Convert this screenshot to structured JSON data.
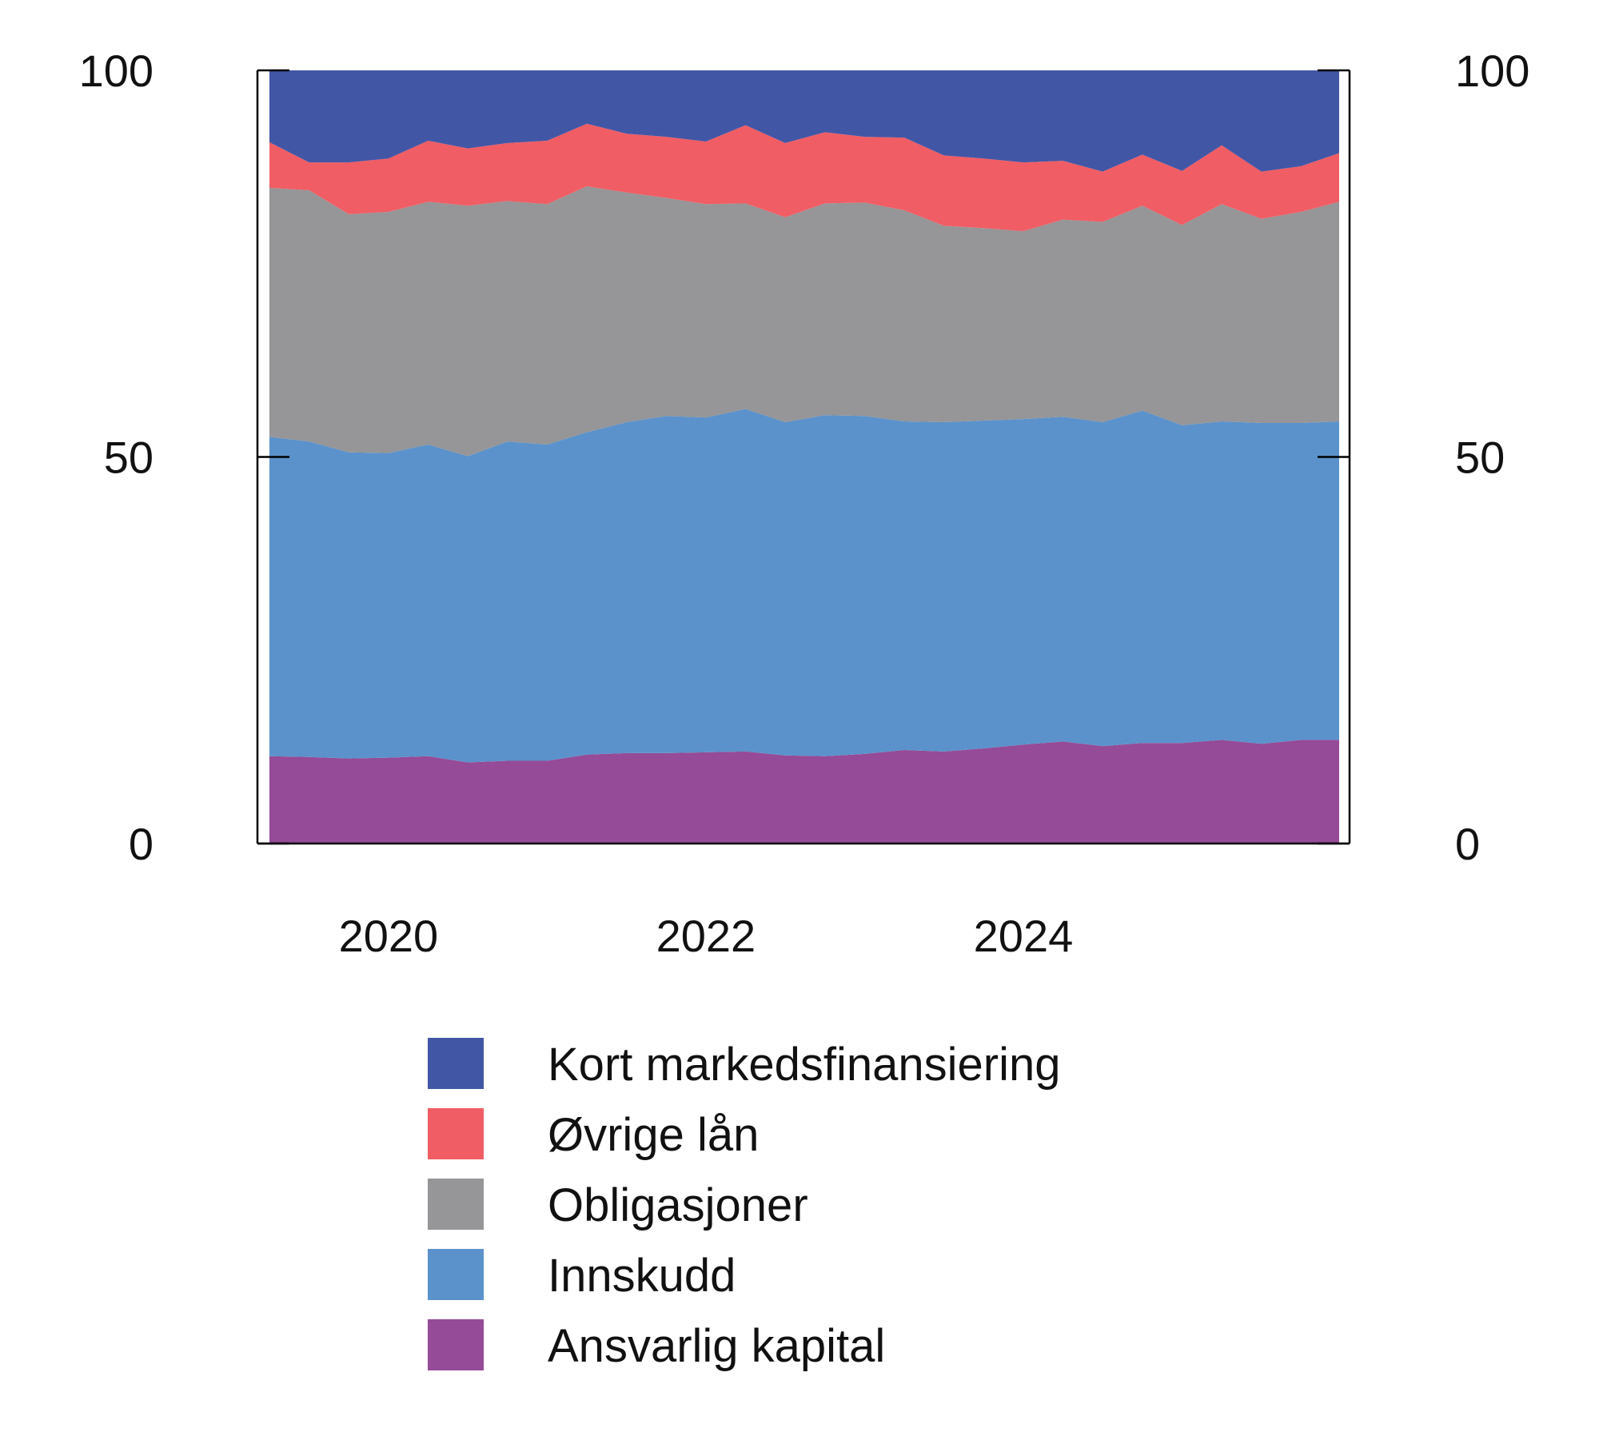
{
  "chart_data": {
    "type": "area",
    "stacked": true,
    "title": "",
    "xlabel": "",
    "ylabel": "",
    "ylim": [
      0,
      100
    ],
    "xlim": [
      2019.25,
      2025.99
    ],
    "y_ticks": [
      0,
      50,
      100
    ],
    "y_tick_labels": [
      "0",
      "50",
      "100"
    ],
    "y_tick_labels_right": [
      "0",
      "50",
      "100"
    ],
    "x_ticks": [
      2020,
      2022,
      2024
    ],
    "x_tick_labels": [
      "2020",
      "2022",
      "2024"
    ],
    "grid": false,
    "legend_position": "bottom",
    "x": [
      2019.25,
      2019.5,
      2019.75,
      2020.0,
      2020.25,
      2020.5,
      2020.75,
      2021.0,
      2021.25,
      2021.5,
      2021.75,
      2022.0,
      2022.25,
      2022.5,
      2022.75,
      2023.0,
      2023.25,
      2023.5,
      2023.75,
      2024.0,
      2024.25,
      2024.5,
      2024.75,
      2025.0,
      2025.25,
      2025.5,
      2025.75,
      2025.99
    ],
    "series": [
      {
        "name": "Ansvarlig kapital",
        "color": "#954B97",
        "values": [
          11.3,
          11.2,
          11.0,
          11.1,
          11.3,
          10.5,
          10.7,
          10.7,
          11.5,
          11.7,
          11.7,
          11.8,
          11.9,
          11.4,
          11.3,
          11.6,
          12.1,
          11.9,
          12.3,
          12.8,
          13.2,
          12.6,
          13.0,
          13.0,
          13.4,
          12.9,
          13.4,
          13.4
        ]
      },
      {
        "name": "Innskudd",
        "color": "#5B92CB",
        "values": [
          41.3,
          40.8,
          39.6,
          39.4,
          40.3,
          39.6,
          41.3,
          40.9,
          41.7,
          42.8,
          43.6,
          43.3,
          44.3,
          43.1,
          44.1,
          43.7,
          42.5,
          42.6,
          42.4,
          42.1,
          42.0,
          41.9,
          43.0,
          41.1,
          41.2,
          41.5,
          41.0,
          41.2
        ]
      },
      {
        "name": "Obligasjoner",
        "color": "#969597",
        "values": [
          32.2,
          32.5,
          30.8,
          31.2,
          31.4,
          32.4,
          31.1,
          31.1,
          31.8,
          29.7,
          28.2,
          27.6,
          26.6,
          26.5,
          27.4,
          27.6,
          27.3,
          25.4,
          24.9,
          24.3,
          25.5,
          25.9,
          26.5,
          25.9,
          28.1,
          26.4,
          27.3,
          28.4
        ]
      },
      {
        "name": "Øvrige lån",
        "color": "#F05D64",
        "values": [
          5.9,
          3.6,
          6.7,
          6.9,
          7.9,
          7.4,
          7.5,
          8.2,
          8.1,
          7.6,
          7.9,
          8.1,
          10.1,
          9.6,
          9.2,
          8.5,
          9.4,
          9.1,
          9.0,
          8.9,
          7.6,
          6.5,
          6.6,
          7.0,
          7.6,
          6.1,
          5.9,
          6.3
        ]
      },
      {
        "name": "Kort markedsfinansiering",
        "color": "#4256A6",
        "values": [
          9.3,
          11.9,
          11.9,
          11.4,
          9.1,
          10.1,
          9.4,
          9.1,
          6.9,
          8.2,
          8.6,
          9.2,
          7.1,
          9.4,
          8.0,
          8.6,
          8.7,
          11.0,
          11.4,
          11.9,
          11.7,
          13.1,
          10.9,
          13.0,
          9.7,
          13.1,
          12.4,
          10.7
        ]
      }
    ]
  }
}
